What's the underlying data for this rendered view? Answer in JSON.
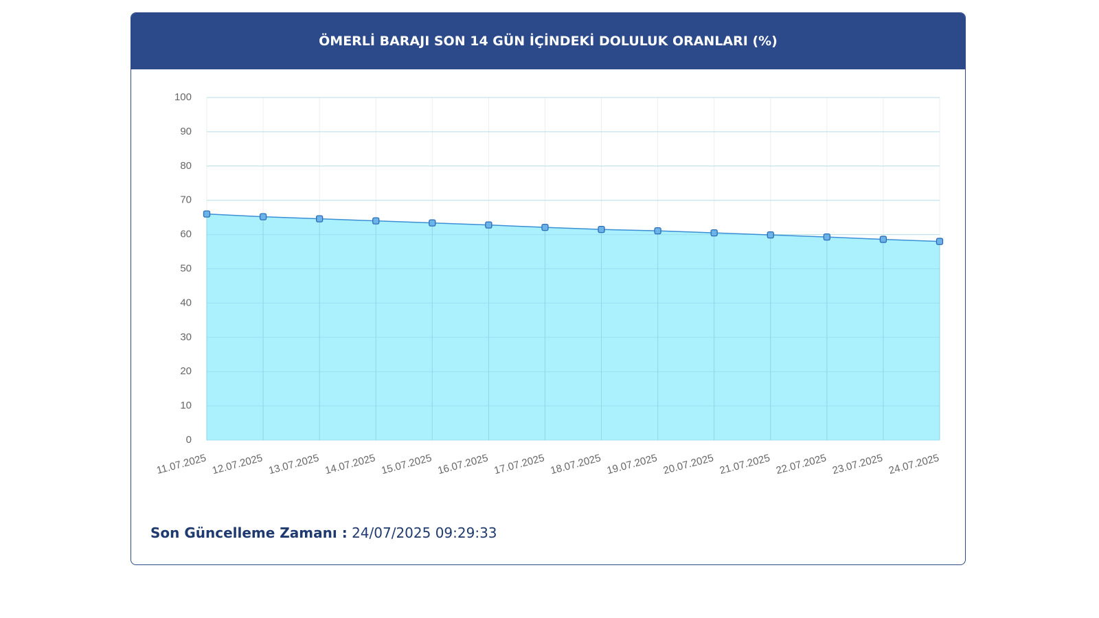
{
  "chart_data": {
    "type": "area",
    "title": "ÖMERLİ BARAJI SON 14 GÜN İÇİNDEKİ DOLULUK ORANLARI (%)",
    "categories": [
      "11.07.2025",
      "12.07.2025",
      "13.07.2025",
      "14.07.2025",
      "15.07.2025",
      "16.07.2025",
      "17.07.2025",
      "18.07.2025",
      "19.07.2025",
      "20.07.2025",
      "21.07.2025",
      "22.07.2025",
      "23.07.2025",
      "24.07.2025"
    ],
    "series": [
      {
        "color": "#3a8fd6",
        "values": [
          66.0,
          65.2,
          64.6,
          64.0,
          63.4,
          62.8,
          62.1,
          61.5,
          61.1,
          60.5,
          59.9,
          59.3,
          58.6,
          58.0
        ]
      }
    ],
    "ylim": [
      0,
      100
    ],
    "yticks": [
      0,
      10,
      20,
      30,
      40,
      50,
      60,
      70,
      80,
      90,
      100
    ],
    "grid": true
  },
  "footer": {
    "label": "Son Güncelleme Zamanı :",
    "value": "24/07/2025 09:29:33"
  }
}
